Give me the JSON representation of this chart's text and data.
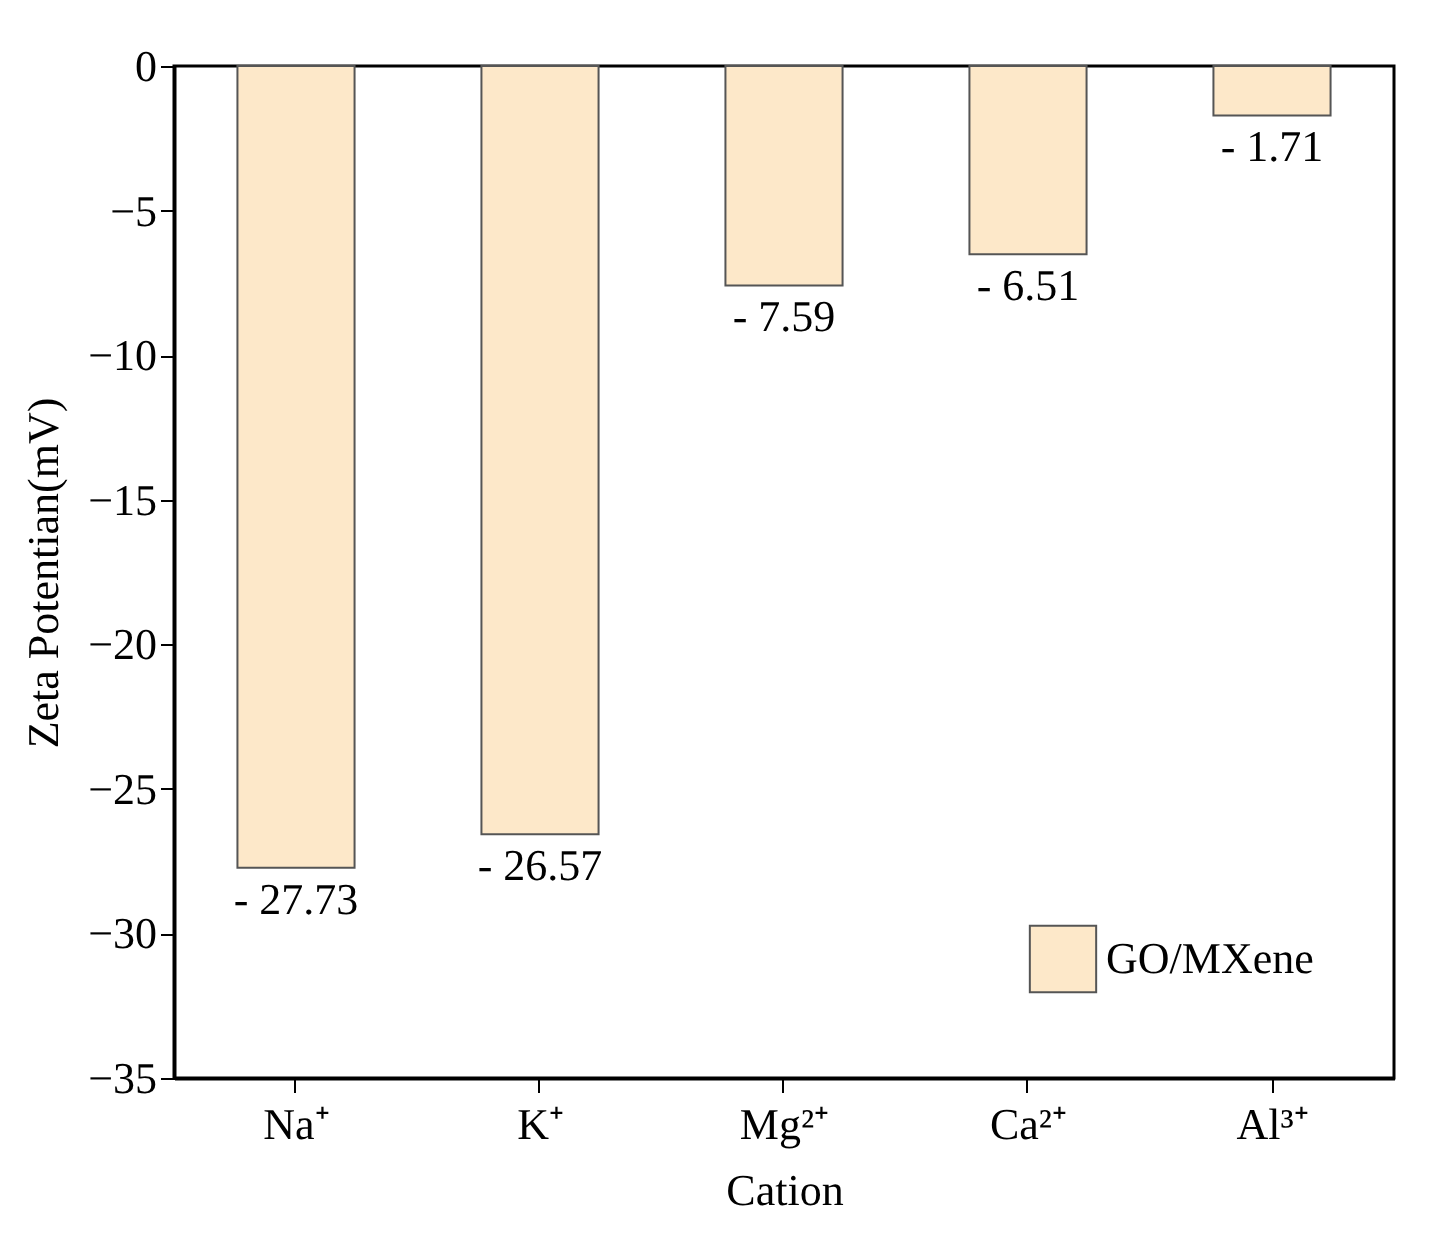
{
  "chart_data": {
    "type": "bar",
    "xlabel": "Cation",
    "ylabel": "Zeta Potentian(mV)",
    "categories": [
      "Na⁺",
      "K⁺",
      "Mg²⁺",
      "Ca²⁺",
      "Al³⁺"
    ],
    "series": [
      {
        "name": "GO/MXene",
        "color": "#fde8c9",
        "values": [
          -27.73,
          -26.57,
          -7.59,
          -6.51,
          -1.71
        ],
        "value_labels": [
          "- 27.73",
          "- 26.57",
          "- 7.59",
          "- 6.51",
          "- 1.71"
        ]
      }
    ],
    "ylim": [
      -35,
      0
    ],
    "yticks": [
      -35,
      -30,
      -25,
      -20,
      -15,
      -10,
      -5,
      0
    ],
    "legend": "bottom right",
    "grid": false
  }
}
